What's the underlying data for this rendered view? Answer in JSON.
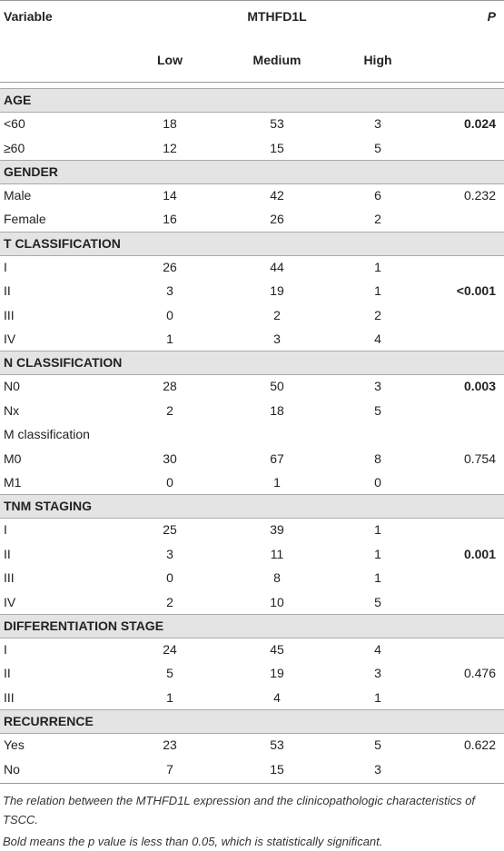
{
  "header": {
    "variable": "Variable",
    "group": "MTHFD1L",
    "p": "P",
    "columns": [
      "Low",
      "Medium",
      "High"
    ]
  },
  "sections": [
    {
      "title": "AGE",
      "rows": [
        {
          "label": "<60",
          "values": [
            18,
            53,
            3
          ],
          "p": "0.024",
          "bold": true
        },
        {
          "label": "≥60",
          "values": [
            12,
            15,
            5
          ]
        }
      ]
    },
    {
      "title": "GENDER",
      "rows": [
        {
          "label": "Male",
          "values": [
            14,
            42,
            6
          ],
          "p": "0.232"
        },
        {
          "label": "Female",
          "values": [
            16,
            26,
            2
          ]
        }
      ]
    },
    {
      "title": "T CLASSIFICATION",
      "rows": [
        {
          "label": "I",
          "values": [
            26,
            44,
            1
          ]
        },
        {
          "label": "II",
          "values": [
            3,
            19,
            1
          ],
          "p": "<0.001",
          "bold": true
        },
        {
          "label": "III",
          "values": [
            0,
            2,
            2
          ]
        },
        {
          "label": "IV",
          "values": [
            1,
            3,
            4
          ]
        }
      ]
    },
    {
      "title": "N CLASSIFICATION",
      "rows": [
        {
          "label": "N0",
          "values": [
            28,
            50,
            3
          ],
          "p": "0.003",
          "bold": true
        },
        {
          "label": "Nx",
          "values": [
            2,
            18,
            5
          ]
        },
        {
          "label": "M classification"
        },
        {
          "label": "M0",
          "values": [
            30,
            67,
            8
          ],
          "p": "0.754"
        },
        {
          "label": "M1",
          "values": [
            0,
            1,
            0
          ]
        }
      ]
    },
    {
      "title": "TNM STAGING",
      "rows": [
        {
          "label": "I",
          "values": [
            25,
            39,
            1
          ]
        },
        {
          "label": "II",
          "values": [
            3,
            11,
            1
          ],
          "p": "0.001",
          "bold": true
        },
        {
          "label": "III",
          "values": [
            0,
            8,
            1
          ]
        },
        {
          "label": "IV",
          "values": [
            2,
            10,
            5
          ]
        }
      ]
    },
    {
      "title": "DIFFERENTIATION STAGE",
      "rows": [
        {
          "label": "I",
          "values": [
            24,
            45,
            4
          ]
        },
        {
          "label": "II",
          "values": [
            5,
            19,
            3
          ],
          "p": "0.476"
        },
        {
          "label": "III",
          "values": [
            1,
            4,
            1
          ]
        }
      ]
    },
    {
      "title": "RECURRENCE",
      "rows": [
        {
          "label": "Yes",
          "values": [
            23,
            53,
            5
          ],
          "p": "0.622"
        },
        {
          "label": "No",
          "values": [
            7,
            15,
            3
          ]
        }
      ]
    }
  ],
  "footnotes": [
    "The relation between the MTHFD1L expression and the clinicopathologic characteristics of TSCC.",
    "Bold means the p value is less than 0.05, which is statistically significant."
  ]
}
